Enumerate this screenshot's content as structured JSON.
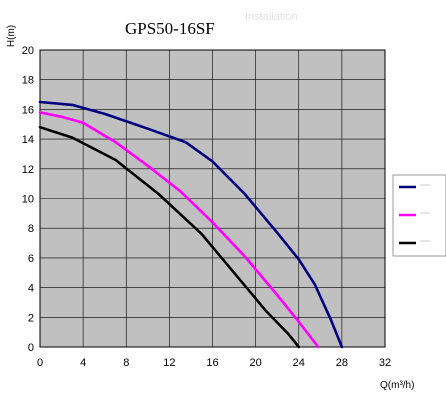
{
  "chart_data": {
    "type": "line",
    "title": "GPS50-16SF",
    "watermark": "Installation",
    "ylabel": "H(m)",
    "xlabel": "Q(m³/h)",
    "xlim": [
      0,
      32
    ],
    "ylim": [
      0,
      20
    ],
    "xticks": [
      "0",
      "4",
      "8",
      "12",
      "16",
      "20",
      "24",
      "28",
      "32"
    ],
    "yticks": [
      "0",
      "2",
      "4",
      "6",
      "8",
      "10",
      "12",
      "14",
      "16",
      "18",
      "20"
    ],
    "grid": true,
    "plot_background": "#c0c0c0",
    "legend_position": "right",
    "series": [
      {
        "color": "#000080",
        "x": [
          0,
          3,
          6,
          10,
          13.5,
          16,
          19,
          22,
          24,
          25.5,
          27,
          28
        ],
        "y": [
          16.5,
          16.3,
          15.7,
          14.7,
          13.8,
          12.5,
          10.3,
          7.7,
          5.9,
          4.2,
          1.8,
          0
        ]
      },
      {
        "color": "#ff00ff",
        "x": [
          0,
          2,
          4,
          7,
          10,
          13,
          16,
          19,
          22,
          24,
          25.8
        ],
        "y": [
          15.8,
          15.5,
          15.1,
          13.8,
          12.2,
          10.5,
          8.4,
          6.1,
          3.5,
          1.7,
          0
        ]
      },
      {
        "color": "#000000",
        "x": [
          0,
          3,
          7,
          11,
          15,
          18,
          21,
          23,
          24
        ],
        "y": [
          14.8,
          14.1,
          12.6,
          10.3,
          7.6,
          5.0,
          2.4,
          0.9,
          0
        ]
      }
    ]
  }
}
